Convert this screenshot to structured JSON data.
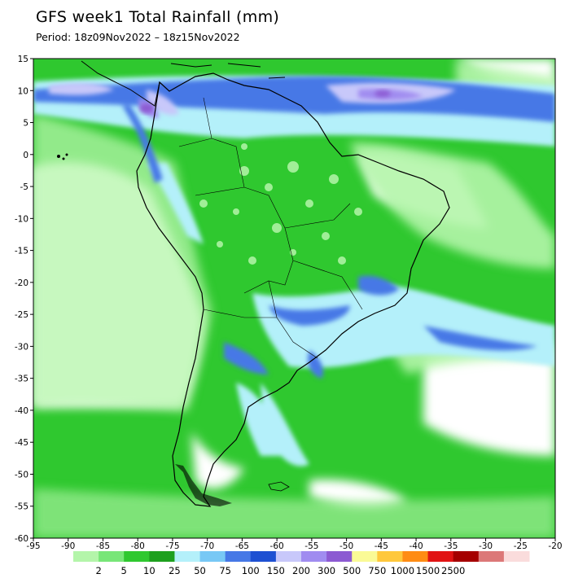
{
  "title": "GFS week1 Total Rainfall (mm)",
  "period": "Period: 18z09Nov2022 – 18z15Nov2022",
  "map": {
    "lon_range": [
      -95,
      -20
    ],
    "lat_range": [
      -60,
      15
    ],
    "lon_ticks": [
      "-95",
      "-90",
      "-85",
      "-80",
      "-75",
      "-70",
      "-65",
      "-60",
      "-55",
      "-50",
      "-45",
      "-40",
      "-35",
      "-30",
      "-25",
      "-20"
    ],
    "lat_ticks": [
      "15",
      "10",
      "5",
      "0",
      "-5",
      "-10",
      "-15",
      "-20",
      "-25",
      "-30",
      "-35",
      "-40",
      "-45",
      "-50",
      "-55",
      "-60"
    ]
  },
  "colorbar": {
    "labels": [
      "2",
      "5",
      "10",
      "25",
      "50",
      "75",
      "100",
      "150",
      "200",
      "300",
      "500",
      "750",
      "1000",
      "1500",
      "2500"
    ],
    "colors": [
      "#b4f5aa",
      "#78e678",
      "#2fc82f",
      "#1ea01e",
      "#b4f0fa",
      "#78c8f5",
      "#4678e6",
      "#1e50d2",
      "#c8c8fa",
      "#a08cf0",
      "#8c5ad2",
      "#fafa96",
      "#ffc83c",
      "#ff8c14",
      "#e11414",
      "#a50000",
      "#dc7878",
      "#fadcdc"
    ]
  },
  "colors": {
    "land_outline": "#000000",
    "light_rain": "#b4f5aa",
    "moderate_rain": "#2fc82f",
    "heavy_rain": "#4678e6"
  }
}
